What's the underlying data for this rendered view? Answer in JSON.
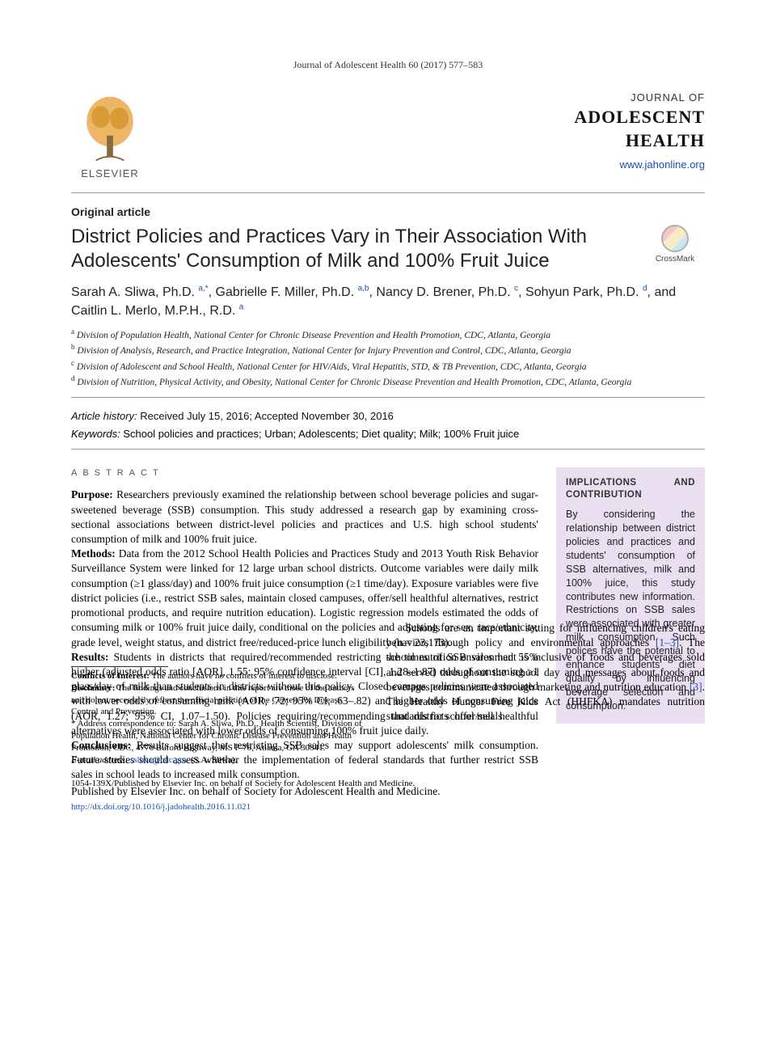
{
  "running_head": "Journal of Adolescent Health 60 (2017) 577–583",
  "publisher": {
    "logo_label": "ELSEVIER",
    "tree_color": "#e8a94a",
    "trunk_color": "#8a6a3a"
  },
  "journal": {
    "line1": "JOURNAL OF",
    "line2": "ADOLESCENT",
    "line3": "HEALTH",
    "url": "www.jahonline.org"
  },
  "article_type": "Original article",
  "title": "District Policies and Practices Vary in Their Association With Adolescents' Consumption of Milk and 100% Fruit Juice",
  "crossmark_label": "CrossMark",
  "authors_html": "Sarah A. Sliwa, Ph.D. <sup class='aff'>a,*</sup>, Gabrielle F. Miller, Ph.D. <sup class='aff'>a,b</sup>, Nancy D. Brener, Ph.D. <sup class='aff'>c</sup>, Sohyun Park, Ph.D. <sup class='aff'>d</sup>, and Caitlin L. Merlo, M.P.H., R.D. <sup class='aff'>a</sup>",
  "affiliations": [
    {
      "sup": "a",
      "text": "Division of Population Health, National Center for Chronic Disease Prevention and Health Promotion, CDC, Atlanta, Georgia"
    },
    {
      "sup": "b",
      "text": "Division of Analysis, Research, and Practice Integration, National Center for Injury Prevention and Control, CDC, Atlanta, Georgia"
    },
    {
      "sup": "c",
      "text": "Division of Adolescent and School Health, National Center for HIV/Aids, Viral Hepatitis, STD, & TB Prevention, CDC, Atlanta, Georgia"
    },
    {
      "sup": "d",
      "text": "Division of Nutrition, Physical Activity, and Obesity, National Center for Chronic Disease Prevention and Health Promotion, CDC, Atlanta, Georgia"
    }
  ],
  "history": {
    "label": "Article history:",
    "text": "Received July 15, 2016; Accepted November 30, 2016"
  },
  "keywords": {
    "label": "Keywords:",
    "text": "School policies and practices; Urban; Adolescents; Diet quality; Milk; 100% Fruit juice"
  },
  "abstract_label": "ABSTRACT",
  "abstract": {
    "purpose": "Researchers previously examined the relationship between school beverage policies and sugar-sweetened beverage (SSB) consumption. This study addressed a research gap by examining cross-sectional associations between district-level policies and practices and U.S. high school students' consumption of milk and 100% fruit juice.",
    "methods": "Data from the 2012 School Health Policies and Practices Study and 2013 Youth Risk Behavior Surveillance System were linked for 12 large urban school districts. Outcome variables were daily milk consumption (≥1 glass/day) and 100% fruit juice consumption (≥1 time/day). Exposure variables were five district policies (i.e., restrict SSB sales, maintain closed campuses, offer/sell healthful alternatives, restrict promotional products, and require nutrition education). Logistic regression models estimated the odds of consuming milk or 100% fruit juice daily, conditional on the policies and adjusting for sex, race/ethnicity, grade level, weight status, and district free/reduced-price lunch eligibility (n = 23,173).",
    "results": "Students in districts that required/recommended restricting the times of SSB sales had 55% higher (adjusted odds ratio [AOR], 1.55; 95% confidence interval [CI], 1.28–1.87) odds of consuming ≥1 glass/day of milk than students in districts without this policy. Closed campus policies were associated with lower odds of consuming milk (AOR, .72; 95% CI, .63–.82) and higher odds of consuming juice (AOR, 1.27; 95% CI, 1.07–1.50). Policies requiring/recommending that districts offer/sell healthful alternatives were associated with lower odds of consuming 100% fruit juice daily.",
    "conclusions": "Results suggest that restricting SSB sales may support adolescents' milk consumption. Future studies should assess whether the implementation of federal standards that further restrict SSB sales in school leads to increased milk consumption.",
    "publisher_line": "Published by Elsevier Inc. on behalf of Society for Adolescent Health and Medicine."
  },
  "implications": {
    "label": "IMPLICATIONS AND CONTRIBUTION",
    "text": "By considering the relationship between district policies and practices and students' consumption of SSB alternatives, milk and 100% juice, this study contributes new information. Restrictions on SSB sales were associated with greater milk consumption. Such polices have the potential to enhance students' diet quality by influencing beverage selection and consumption.",
    "bg": "#e9dff0"
  },
  "footnotes": {
    "coi": {
      "label": "Conflicts of Interest:",
      "text": "The authors have no conflicts of interest to disclose."
    },
    "disclaimer": {
      "label": "Disclaimer:",
      "text": "The findings and conclusions in this report are those of the authors and do not necessarily reflect the official position of the Centers for Disease Control and Prevention."
    },
    "corr": {
      "marker": "*",
      "text": "Address correspondence to: Sarah A. Sliwa, Ph.D., Health Scientist, Division of Population Health, National Center for Chronic Disease Prevention and Health Promotion, CDC, 4770 Buford Highway, MS F-78, Atlanta, GA 30341."
    },
    "email": {
      "label": "E-mail address:",
      "address": "ssliwa@cdc.gov",
      "attribution": "(S.A. Sliwa)."
    }
  },
  "intro_text": "Schools are an important setting for influencing children's eating behaviors through policy and environmental approaches [1–3]. The school nutrition environment is inclusive of foods and beverages sold and served throughout the school day and messages about foods and beverages communicated through marketing and nutrition education [3]. The Healthy Hunger Free Kids Act (HHFKA) mandates nutrition standards for school meals",
  "refs_inline": [
    "[1–3]",
    "[3]"
  ],
  "doi_line": "1054-139X/Published by Elsevier Inc. on behalf of Society for Adolescent Health and Medicine.",
  "doi_url": "http://dx.doi.org/10.1016/j.jadohealth.2016.11.021",
  "colors": {
    "link": "#1a4fb3",
    "text": "#000000",
    "muted": "#555555",
    "rule": "#999999"
  }
}
